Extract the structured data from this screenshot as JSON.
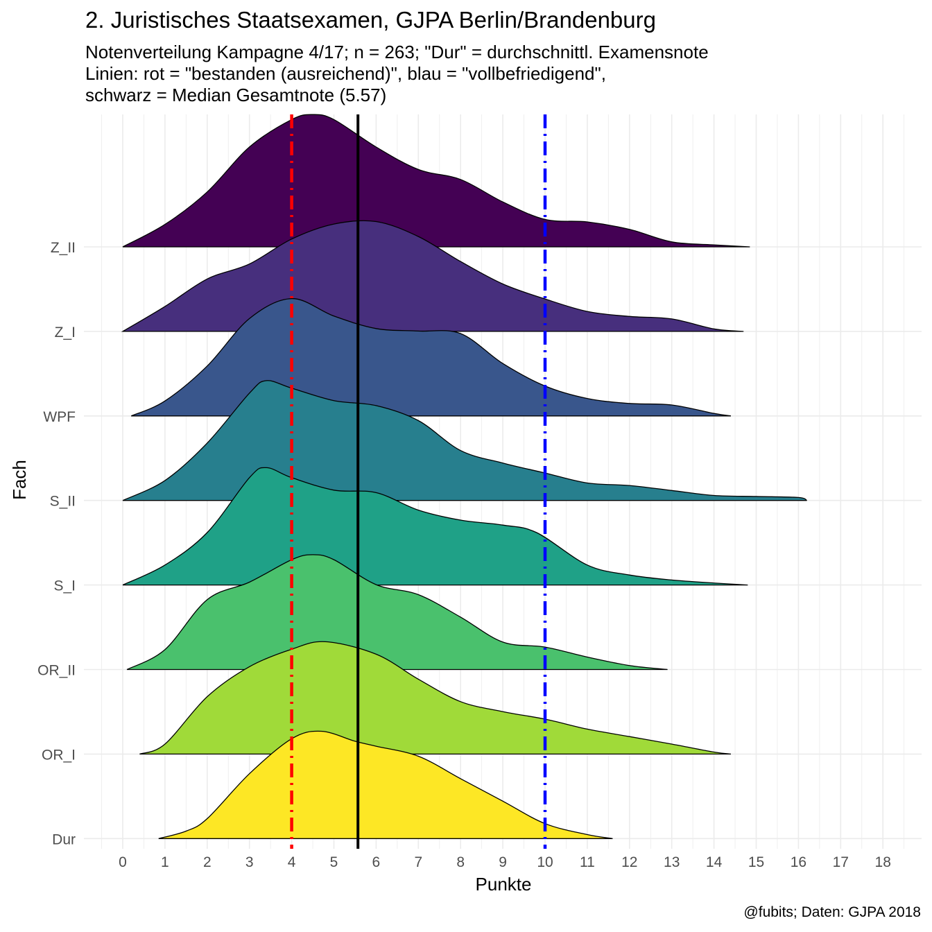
{
  "chart_data": {
    "type": "ridgeline",
    "title": "2. Juristisches Staatsexamen, GJPA Berlin/Brandenburg",
    "subtitle_lines": [
      "Notenverteilung Kampagne 4/17; n = 263; \"Dur\" = durchschnittl. Examensnote",
      "Linien: rot  = \"bestanden (ausreichend)\", blau  = \"vollbefriedigend\",",
      "schwarz  = Median Gesamtnote (5.57)"
    ],
    "caption": "@fubits; Daten: GJPA 2018",
    "xlabel": "Punkte",
    "ylabel": "Fach",
    "xlim": [
      -0.5,
      18.5
    ],
    "x_ticks": [
      0,
      1,
      2,
      3,
      4,
      5,
      6,
      7,
      8,
      9,
      10,
      11,
      12,
      13,
      14,
      15,
      16,
      17,
      18
    ],
    "grid": true,
    "vlines": [
      {
        "x": 4,
        "color": "#ff0000",
        "style": "dotdash"
      },
      {
        "x": 10,
        "color": "#0000ff",
        "style": "dotdash"
      },
      {
        "x": 5.57,
        "color": "#000000",
        "style": "solid"
      }
    ],
    "series": [
      {
        "name": "Z_II",
        "color": "#440154",
        "x": [
          0,
          1,
          2,
          3,
          4,
          4.5,
          5,
          6,
          7,
          8,
          9,
          10,
          11,
          12,
          13,
          14,
          14.85
        ],
        "density": [
          0.0,
          0.045,
          0.11,
          0.2,
          0.255,
          0.265,
          0.255,
          0.2,
          0.155,
          0.135,
          0.09,
          0.055,
          0.05,
          0.035,
          0.01,
          0.004,
          0.0
        ]
      },
      {
        "name": "Z_I",
        "color": "#472F7D",
        "x": [
          0,
          1,
          2,
          3,
          4,
          5,
          6,
          7,
          8,
          9,
          10,
          11,
          12,
          13,
          14,
          14.7
        ],
        "density": [
          0.0,
          0.05,
          0.105,
          0.135,
          0.185,
          0.215,
          0.22,
          0.19,
          0.14,
          0.095,
          0.065,
          0.04,
          0.03,
          0.025,
          0.005,
          0.0
        ]
      },
      {
        "name": "WPF",
        "color": "#39568C",
        "x": [
          0.2,
          1,
          2,
          3,
          4,
          5,
          6,
          7,
          8,
          9,
          10,
          11,
          12,
          13,
          14,
          14.4
        ],
        "density": [
          0.0,
          0.03,
          0.1,
          0.195,
          0.235,
          0.2,
          0.175,
          0.17,
          0.165,
          0.105,
          0.06,
          0.035,
          0.025,
          0.022,
          0.005,
          0.0
        ]
      },
      {
        "name": "S_II",
        "color": "#277F8E",
        "x": [
          0,
          1,
          2,
          3,
          3.4,
          4,
          5,
          6,
          7,
          8,
          9,
          10,
          11,
          12,
          13,
          14,
          15,
          16,
          16.2
        ],
        "density": [
          0.0,
          0.04,
          0.115,
          0.215,
          0.24,
          0.225,
          0.2,
          0.19,
          0.16,
          0.1,
          0.075,
          0.055,
          0.035,
          0.03,
          0.02,
          0.01,
          0.008,
          0.006,
          0.0
        ]
      },
      {
        "name": "S_I",
        "color": "#1FA187",
        "x": [
          0,
          1,
          2,
          3,
          3.4,
          4,
          5,
          6,
          7,
          8,
          9,
          9.8,
          11,
          12,
          13,
          14,
          14.8
        ],
        "density": [
          0.0,
          0.04,
          0.105,
          0.215,
          0.235,
          0.215,
          0.19,
          0.185,
          0.15,
          0.13,
          0.12,
          0.105,
          0.04,
          0.02,
          0.01,
          0.004,
          0.0
        ]
      },
      {
        "name": "OR_II",
        "color": "#4AC16D",
        "x": [
          0.1,
          1,
          2,
          3,
          4,
          4.5,
          5,
          6,
          7,
          8,
          9,
          10,
          11,
          12,
          12.9
        ],
        "density": [
          0.0,
          0.04,
          0.14,
          0.175,
          0.22,
          0.23,
          0.22,
          0.17,
          0.15,
          0.105,
          0.055,
          0.045,
          0.025,
          0.008,
          0.0
        ]
      },
      {
        "name": "OR_I",
        "color": "#A0DA39",
        "x": [
          0.4,
          1,
          2,
          3,
          4,
          4.8,
          6,
          7,
          8,
          9,
          10,
          11,
          12,
          13,
          14,
          14.4
        ],
        "density": [
          0.0,
          0.02,
          0.115,
          0.175,
          0.21,
          0.225,
          0.2,
          0.15,
          0.105,
          0.085,
          0.07,
          0.05,
          0.035,
          0.02,
          0.004,
          0.0
        ]
      },
      {
        "name": "Dur",
        "color": "#FDE725",
        "x": [
          0.85,
          1.5,
          2,
          3,
          4,
          4.7,
          5.5,
          6,
          7,
          8,
          9,
          10,
          11,
          11.6
        ],
        "density": [
          0.0,
          0.015,
          0.04,
          0.13,
          0.2,
          0.215,
          0.195,
          0.185,
          0.165,
          0.12,
          0.075,
          0.03,
          0.008,
          0.0
        ]
      }
    ]
  }
}
